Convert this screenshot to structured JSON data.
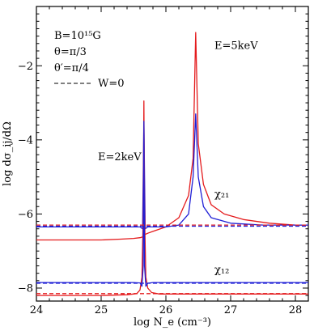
{
  "chart_data": {
    "type": "line",
    "xlabel": "log N_e (cm⁻³)",
    "ylabel": "log dσ_ij/dΩ",
    "xlim": [
      24.0,
      28.2
    ],
    "ylim": [
      -8.35,
      -0.4
    ],
    "xticks": [
      24,
      25,
      26,
      27,
      28
    ],
    "xtick_labels": [
      "24",
      "25",
      "26",
      "27",
      "28"
    ],
    "yticks": [
      -8,
      -6,
      -4,
      -2
    ],
    "ytick_labels": [
      "−8",
      "−6",
      "−4",
      "−2"
    ],
    "grid": false,
    "legend": {
      "lines": [
        "B=10¹⁵G",
        "θ=π/3",
        "θ′=π/4"
      ],
      "dashed_label": "W=0",
      "position": "top-left"
    },
    "annotations": [
      {
        "text": "E=5keV",
        "x": 26.75,
        "y": -1.55,
        "color": "#000000"
      },
      {
        "text": "E=2keV",
        "x": 24.95,
        "y": -4.55,
        "color": "#000000"
      },
      {
        "text": "χ₂₁",
        "x": 26.75,
        "y": -5.55,
        "color": "#e41a1c"
      },
      {
        "text": "χ₁₂",
        "x": 26.75,
        "y": -7.6,
        "color": "#1f1fd6"
      }
    ],
    "series": [
      {
        "color": "#e41a1c",
        "dash": false,
        "x": [
          24.0,
          24.5,
          25.0,
          25.3,
          25.5,
          25.6,
          25.64,
          25.66,
          25.68,
          25.72,
          25.8,
          26.0,
          26.2,
          26.35,
          26.42,
          26.46,
          26.5,
          26.58,
          26.7,
          26.9,
          27.2,
          27.6,
          28.0,
          28.2
        ],
        "y": [
          -6.7,
          -6.7,
          -6.7,
          -6.68,
          -6.66,
          -6.64,
          -6.62,
          -6.58,
          -6.55,
          -6.52,
          -6.47,
          -6.35,
          -6.1,
          -5.5,
          -4.5,
          -1.1,
          -4.1,
          -5.2,
          -5.75,
          -6.0,
          -6.15,
          -6.25,
          -6.3,
          -6.3
        ]
      },
      {
        "color": "#1f1fd6",
        "dash": false,
        "x": [
          24.0,
          24.5,
          25.0,
          25.4,
          25.6,
          25.64,
          25.66,
          25.68,
          25.72,
          25.8,
          26.0,
          26.2,
          26.35,
          26.42,
          26.46,
          26.5,
          26.58,
          26.7,
          27.0,
          27.5,
          28.0,
          28.2
        ],
        "y": [
          -6.35,
          -6.35,
          -6.35,
          -6.35,
          -6.35,
          -6.4,
          -3.5,
          -6.4,
          -6.35,
          -6.35,
          -6.35,
          -6.3,
          -6.0,
          -5.0,
          -3.3,
          -5.0,
          -5.8,
          -6.1,
          -6.25,
          -6.3,
          -6.3,
          -6.3
        ]
      },
      {
        "color": "#e41a1c",
        "dash": false,
        "x": [
          24.0,
          25.0,
          25.4,
          25.55,
          25.6,
          25.63,
          25.65,
          25.66,
          25.67,
          25.69,
          25.72,
          25.78,
          25.9,
          26.1,
          26.5,
          27.0,
          28.0,
          28.2
        ],
        "y": [
          -8.2,
          -8.2,
          -8.18,
          -8.15,
          -8.05,
          -7.7,
          -6.0,
          -2.95,
          -6.0,
          -7.7,
          -8.0,
          -8.12,
          -8.16,
          -8.16,
          -8.16,
          -8.16,
          -8.16,
          -8.16
        ]
      },
      {
        "color": "#1f1fd6",
        "dash": false,
        "x": [
          24.0,
          25.0,
          25.5,
          25.6,
          25.63,
          25.65,
          25.66,
          25.67,
          25.69,
          25.72,
          25.8,
          26.0,
          26.5,
          27.0,
          28.0,
          28.2
        ],
        "y": [
          -7.85,
          -7.85,
          -7.85,
          -7.86,
          -7.95,
          -7.4,
          -3.5,
          -7.4,
          -7.95,
          -7.87,
          -7.85,
          -7.85,
          -7.85,
          -7.85,
          -7.85,
          -7.85
        ]
      },
      {
        "color": "#e41a1c",
        "dash": true,
        "x": [
          24.0,
          28.2
        ],
        "y": [
          -6.3,
          -6.3
        ]
      },
      {
        "color": "#1f1fd6",
        "dash": true,
        "x": [
          24.0,
          28.2
        ],
        "y": [
          -6.33,
          -6.33
        ]
      },
      {
        "color": "#e41a1c",
        "dash": true,
        "x": [
          24.0,
          28.2
        ],
        "y": [
          -8.15,
          -8.15
        ]
      },
      {
        "color": "#1f1fd6",
        "dash": true,
        "x": [
          24.0,
          28.2
        ],
        "y": [
          -7.87,
          -7.87
        ]
      }
    ]
  }
}
